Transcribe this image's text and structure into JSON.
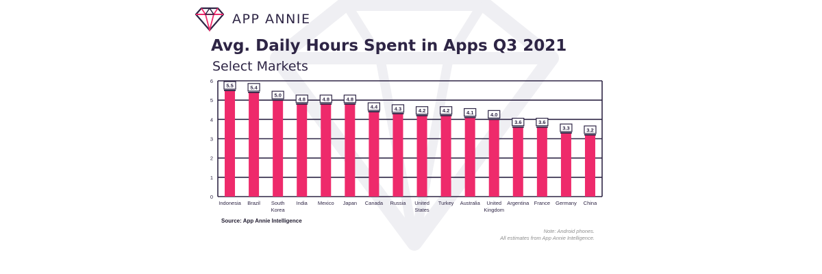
{
  "brand": {
    "name": "APP ANNIE",
    "logo_icon": "diamond-icon"
  },
  "colors": {
    "bar": "#ee2a6b",
    "bar_stroke": "#2e2545",
    "grid": "#2e2545",
    "text": "#2e2545",
    "watermark": "#efeff3"
  },
  "footer": {
    "source": "Source: App Annie Intelligence",
    "note_line1": "Note: Android phones.",
    "note_line2": "All estimates from App Annie Intelligence."
  },
  "chart_data": {
    "type": "bar",
    "title": "Avg. Daily Hours Spent in Apps Q3 2021",
    "subtitle": "Select Markets",
    "xlabel": "",
    "ylabel": "",
    "ylim": [
      0,
      6
    ],
    "yticks": [
      "0",
      "1",
      "2",
      "3",
      "4",
      "5",
      "6"
    ],
    "grid": true,
    "legend": "none",
    "categories": [
      [
        "Indonesia"
      ],
      [
        "Brazil"
      ],
      [
        "South",
        "Korea"
      ],
      [
        "India"
      ],
      [
        "Mexico"
      ],
      [
        "Japan"
      ],
      [
        "Canada"
      ],
      [
        "Russia"
      ],
      [
        "United",
        "States"
      ],
      [
        "Turkey"
      ],
      [
        "Australia"
      ],
      [
        "United",
        "Kingdom"
      ],
      [
        "Argentina"
      ],
      [
        "France"
      ],
      [
        "Germany"
      ],
      [
        "China"
      ]
    ],
    "values": [
      5.5,
      5.4,
      5.0,
      4.8,
      4.8,
      4.8,
      4.4,
      4.3,
      4.2,
      4.2,
      4.1,
      4.0,
      3.6,
      3.6,
      3.3,
      3.2
    ],
    "data_labels": [
      "5.5",
      "5.4",
      "5.0",
      "4.8",
      "4.8",
      "4.8",
      "4.4",
      "4.3",
      "4.2",
      "4.2",
      "4.1",
      "4.0",
      "3.6",
      "3.6",
      "3.3",
      "3.2"
    ]
  }
}
